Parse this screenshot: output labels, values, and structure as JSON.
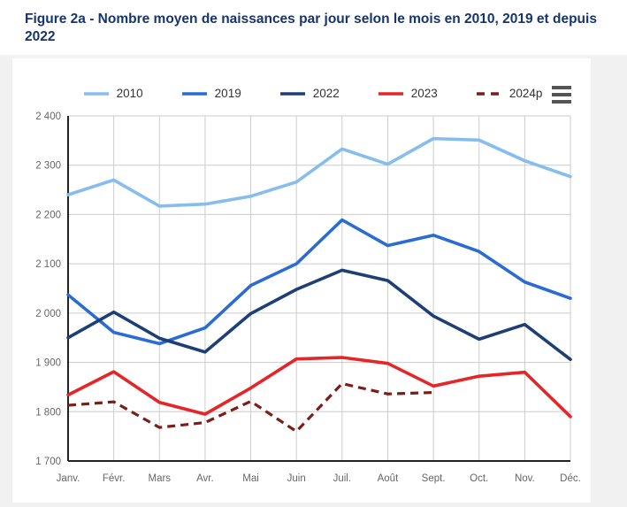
{
  "header": {
    "title": "Figure 2a - Nombre moyen de naissances par jour selon le mois en 2010, 2019 et depuis 2022"
  },
  "chart_data": {
    "type": "line",
    "title": "Nombre moyen de naissances par jour selon le mois",
    "categories": [
      "Janv.",
      "Févr.",
      "Mars",
      "Avr.",
      "Mai",
      "Juin",
      "Juil.",
      "Août",
      "Sept.",
      "Oct.",
      "Nov.",
      "Déc."
    ],
    "series": [
      {
        "name": "2010",
        "color": "#85bdee",
        "dashed": false,
        "values": [
          2240,
          2270,
          2217,
          2221,
          2237,
          2266,
          2333,
          2302,
          2354,
          2351,
          2309,
          2277
        ]
      },
      {
        "name": "2019",
        "color": "#2a6cd4",
        "dashed": false,
        "values": [
          2037,
          1961,
          1938,
          1970,
          2056,
          2100,
          2189,
          2137,
          2158,
          2125,
          2063,
          2030
        ]
      },
      {
        "name": "2022",
        "color": "#1e3f75",
        "dashed": false,
        "values": [
          1950,
          2002,
          1949,
          1921,
          1999,
          2048,
          2087,
          2066,
          1994,
          1947,
          1977,
          1906
        ]
      },
      {
        "name": "2023",
        "color": "#e52528",
        "dashed": false,
        "values": [
          1834,
          1881,
          1819,
          1795,
          1848,
          1907,
          1910,
          1898,
          1852,
          1872,
          1880,
          1790
        ]
      },
      {
        "name": "2024p",
        "color": "#7d1d18",
        "dashed": true,
        "values": [
          1813,
          1820,
          1768,
          1778,
          1821,
          1760,
          1857,
          1836,
          1839
        ]
      }
    ],
    "ylim": [
      1700,
      2400
    ],
    "ytick_step": 100,
    "ytick_labels": [
      "1 700",
      "1 800",
      "1 900",
      "2 000",
      "2 100",
      "2 200",
      "2 300",
      "2 400"
    ],
    "grid": true,
    "legend_position": "top"
  },
  "colors": {
    "page_bg": "#f1f1f1",
    "card_bg": "#ffffff",
    "title": "#16356e",
    "grid_line": "#cccccc",
    "axis_line": "#222222",
    "tick_label": "#666666",
    "legend_label": "#333333",
    "menu_icon": "#555555"
  }
}
